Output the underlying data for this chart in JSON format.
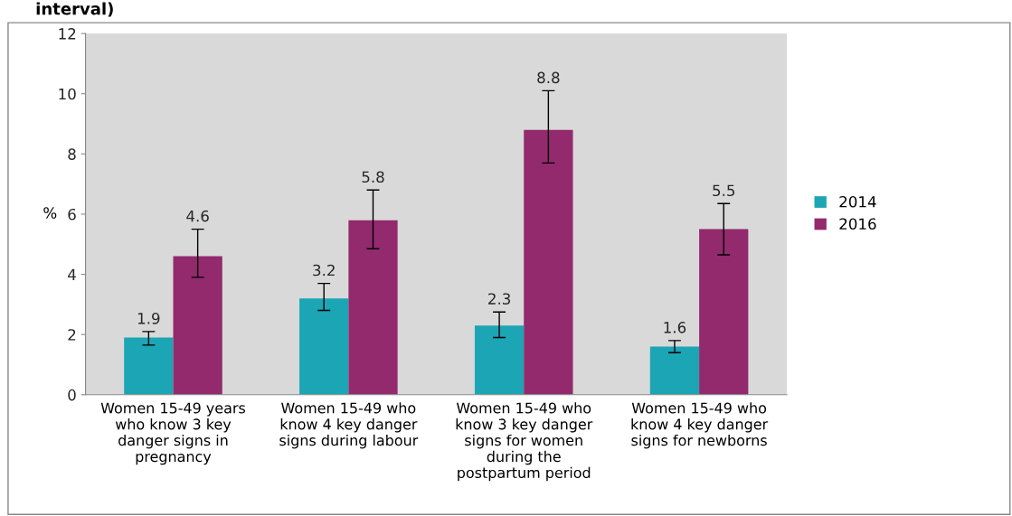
{
  "chart_data": {
    "type": "bar",
    "title": "interval)",
    "ylabel": "%",
    "categories": [
      "Women 15-49 years\nwho know 3 key\ndanger signs in\npregnancy",
      "Women 15-49 who\nknow 4 key danger\nsigns during labour",
      "Women 15-49 who\nknow 3 key danger\nsigns for women\nduring the\npostpartum period",
      "Women 15-49 who\nknow 4 key danger\nsigns for newborns"
    ],
    "series": [
      {
        "name": "2014",
        "color": "#1ba5b5",
        "values": [
          1.9,
          3.2,
          2.3,
          1.6
        ],
        "errors": [
          [
            1.65,
            2.1
          ],
          [
            2.8,
            3.7
          ],
          [
            1.9,
            2.75
          ],
          [
            1.4,
            1.8
          ]
        ]
      },
      {
        "name": "2016",
        "color": "#922a6d",
        "values": [
          4.6,
          5.8,
          8.8,
          5.5
        ],
        "errors": [
          [
            3.9,
            5.5
          ],
          [
            4.85,
            6.8
          ],
          [
            7.7,
            10.1
          ],
          [
            4.65,
            6.35
          ]
        ]
      }
    ],
    "ylim": [
      0,
      12
    ],
    "yticks": [
      0,
      2,
      4,
      6,
      8,
      10,
      12
    ],
    "data_labels": true,
    "grid": false,
    "legend": "right"
  }
}
